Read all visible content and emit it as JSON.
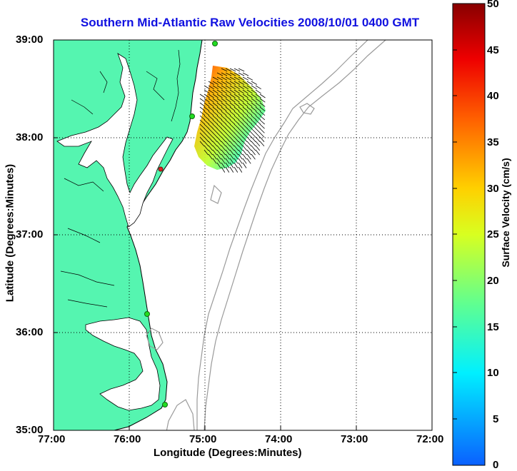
{
  "title": "Southern Mid-Atlantic Raw Velocities 2008/10/01 0400 GMT",
  "xlabel": "Longitude (Degrees:Minutes)",
  "ylabel": "Latitude (Degrees:Minutes)",
  "x_ticks": [
    "77:00",
    "76:00",
    "75:00",
    "74:00",
    "73:00",
    "72:00"
  ],
  "y_ticks": [
    "39:00",
    "38:00",
    "37:00",
    "36:00",
    "35:00"
  ],
  "colorbar": {
    "label": "Surface Velocity (cm/s)",
    "ticks": [
      "0",
      "5",
      "10",
      "15",
      "20",
      "25",
      "30",
      "35",
      "40",
      "45",
      "50"
    ]
  },
  "colors": {
    "land": "#55f5b0",
    "title": "#1010e0",
    "contour": "#9a9a9a",
    "station": "#22dd22",
    "station_alt": "#dd2222"
  }
}
